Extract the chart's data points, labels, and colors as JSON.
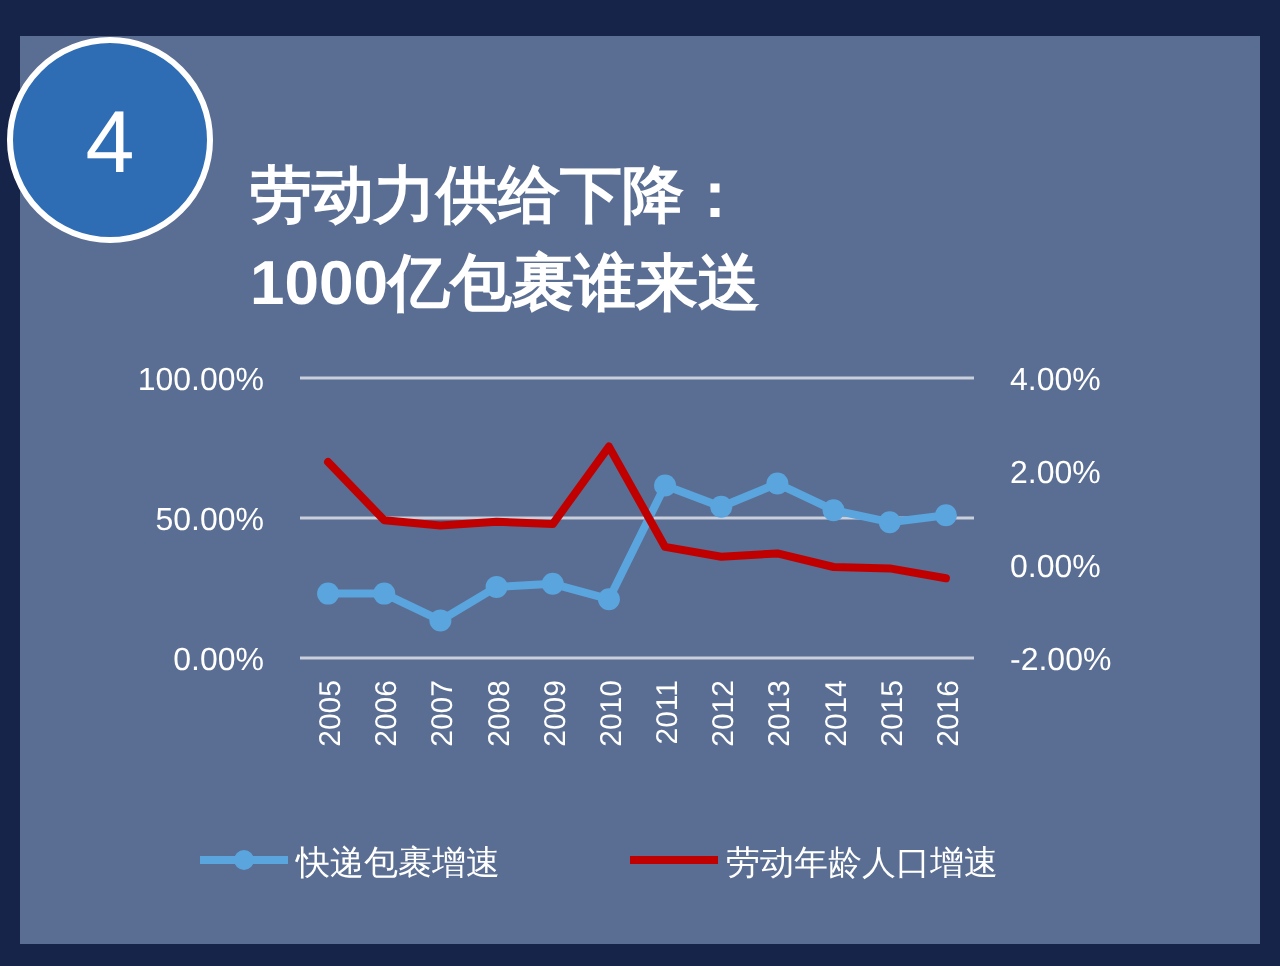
{
  "chart_data": {
    "type": "line",
    "title": "劳动力供给下降：\n1000亿包裹谁来送",
    "annotations": [
      "4"
    ],
    "categories": [
      "2005",
      "2006",
      "2007",
      "2008",
      "2009",
      "2010",
      "2011",
      "2012",
      "2013",
      "2014",
      "2015",
      "2016"
    ],
    "series": [
      {
        "name": "快递包裹增速",
        "color": "#5aa5de",
        "marker": "circle",
        "values": [
          23,
          23,
          13.4,
          25.4,
          26.5,
          21,
          61.6,
          54,
          62.3,
          52.8,
          48.5,
          51
        ]
      },
      {
        "name": "劳动年龄人口增速",
        "color": "#c00000",
        "marker": "none",
        "axis": "y2",
        "values": [
          2.2,
          0.95,
          0.84,
          0.92,
          0.87,
          2.53,
          0.38,
          0.17,
          0.24,
          -0.05,
          -0.08,
          -0.29
        ]
      }
    ],
    "ylim": [
      0,
      100
    ],
    "yticks": [
      {
        "value": 0,
        "label": "0.00%"
      },
      {
        "value": 50,
        "label": "50.00%"
      },
      {
        "value": 100,
        "label": "100.00%"
      }
    ],
    "y2lim": [
      -2,
      4
    ],
    "y2ticks": [
      {
        "value": -2,
        "label": "-2.00%"
      },
      {
        "value": 0,
        "label": "0.00%"
      },
      {
        "value": 2,
        "label": "2.00%"
      },
      {
        "value": 4,
        "label": "4.00%"
      }
    ],
    "grid": "y",
    "legend": "bottom"
  }
}
